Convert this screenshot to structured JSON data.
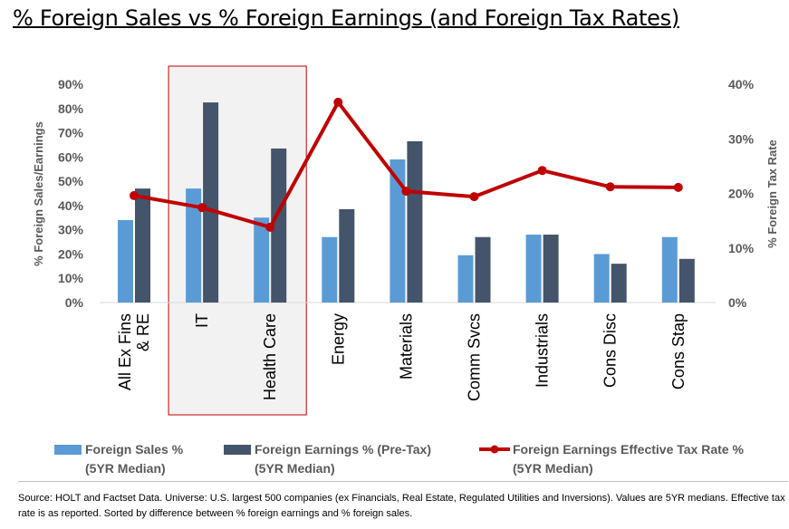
{
  "title": "% Foreign Sales vs % Foreign Earnings (and Foreign Tax Rates)",
  "colors": {
    "sales": "#5b9bd5",
    "earnings": "#44546a",
    "tax": "#c00000",
    "highlight": "#f2f2f2",
    "highlight_border": "#c00000"
  },
  "chart_data": {
    "type": "bar",
    "categories": [
      "All Ex Fins & RE",
      "IT",
      "Health Care",
      "Energy",
      "Materials",
      "Comm Svcs",
      "Industrials",
      "Cons Disc",
      "Cons Stap"
    ],
    "series": [
      {
        "name": "Foreign Sales % (5YR Median)",
        "type": "bar",
        "axis": "left",
        "values": [
          34,
          47,
          35,
          27,
          59,
          19.5,
          28,
          20,
          27
        ]
      },
      {
        "name": "Foreign Earnings % (Pre-Tax) (5YR Median)",
        "type": "bar",
        "axis": "left",
        "values": [
          47,
          82.5,
          63.5,
          38.5,
          66.5,
          27,
          28,
          16,
          18
        ]
      },
      {
        "name": "Foreign Earnings Effective Tax Rate % (5YR Median)",
        "type": "line",
        "axis": "right",
        "values": [
          19.6,
          17.4,
          13.8,
          36.7,
          20.4,
          19.4,
          24.2,
          21.2,
          21.1
        ]
      }
    ],
    "ylabel": "% Foreign Sales/Earnings",
    "ylim": [
      0,
      90
    ],
    "yticks": [
      "0%",
      "10%",
      "20%",
      "30%",
      "40%",
      "50%",
      "60%",
      "70%",
      "80%",
      "90%"
    ],
    "y2label": "% Foreign Tax Rate",
    "y2lim": [
      0,
      40
    ],
    "y2ticks": [
      "0%",
      "10%",
      "20%",
      "30%",
      "40%"
    ],
    "highlighted_categories": [
      "IT",
      "Health Care"
    ],
    "legend_position": "bottom"
  },
  "legend": [
    {
      "line1": "Foreign Sales %",
      "line2": "(5YR Median)"
    },
    {
      "line1": "Foreign Earnings % (Pre-Tax)",
      "line2": "(5YR Median)"
    },
    {
      "line1": "Foreign Earnings Effective Tax Rate %",
      "line2": "(5YR Median)"
    }
  ],
  "source": "Source: HOLT and Factset Data. Universe: U.S. largest 500 companies (ex Financials, Real Estate, Regulated Utilities and Inversions). Values are 5YR medians. Effective tax rate is as reported. Sorted by difference between % foreign earnings and % foreign sales."
}
